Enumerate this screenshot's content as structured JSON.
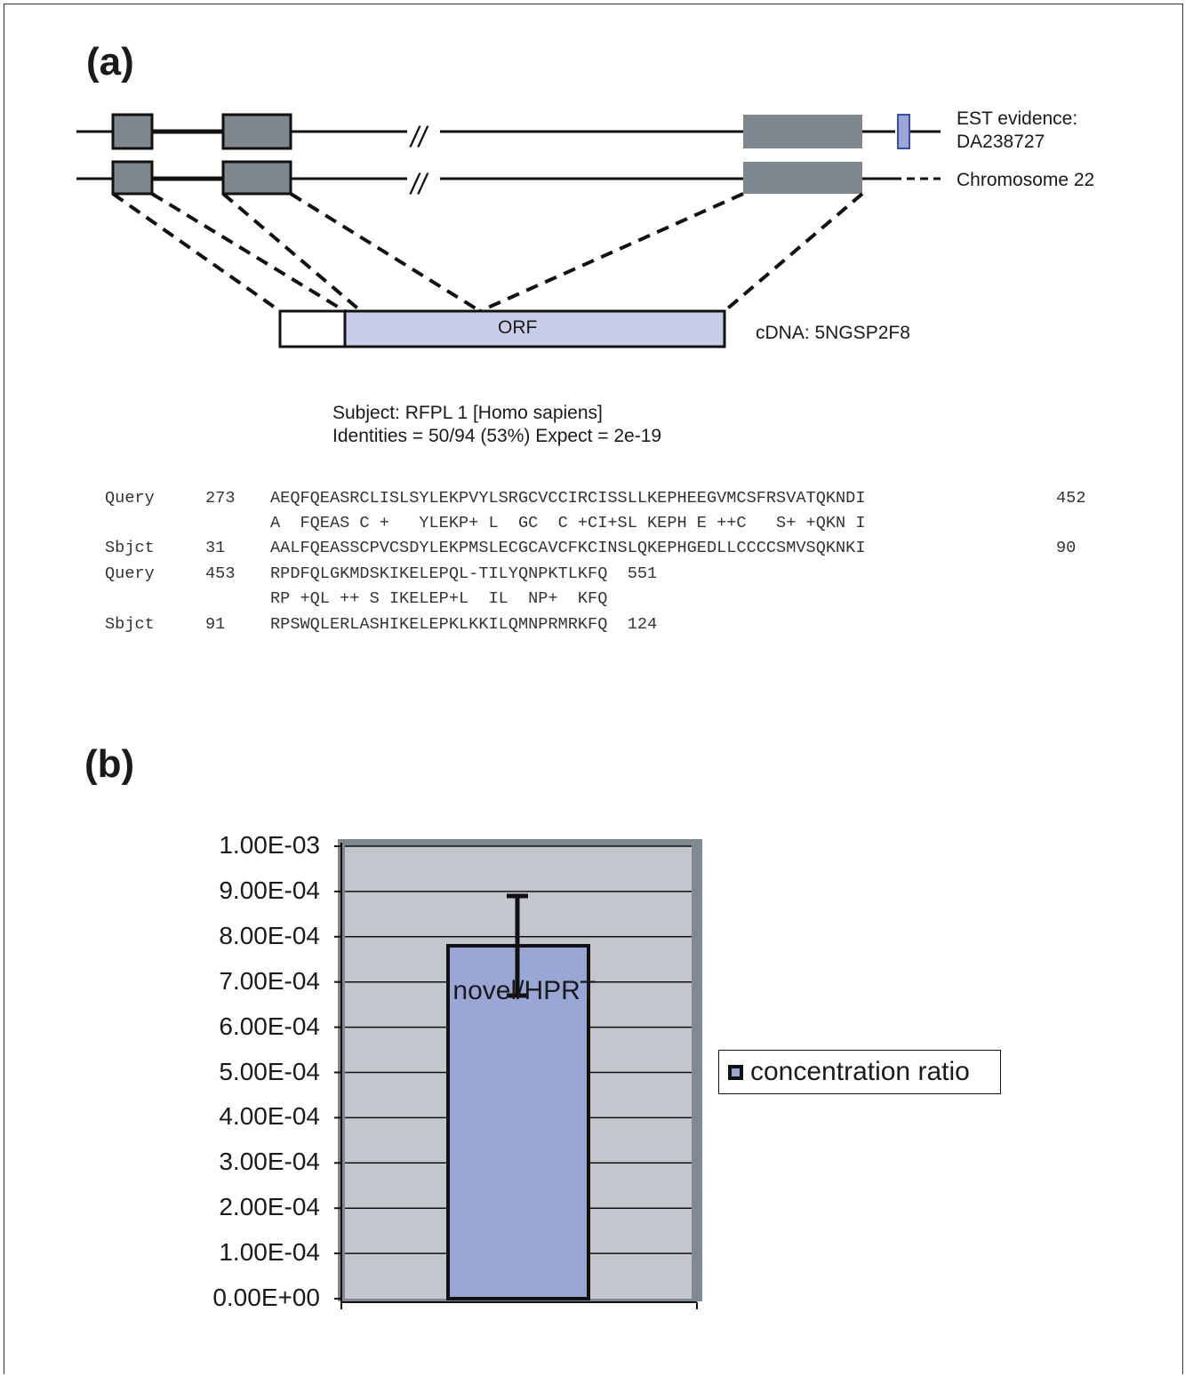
{
  "panels": {
    "a_label": "(a)",
    "b_label": "(b)"
  },
  "gene_diagram": {
    "track1_label_line1": "EST evidence:",
    "track1_label_line2": "DA238727",
    "track2_label": "Chromosome 22",
    "orf_label": "ORF",
    "cdna_label": "cDNA: 5NGSP2F8",
    "break_symbol": "//",
    "colors": {
      "exon": "#7f878e",
      "orf_fill": "#c8cde8",
      "est_marker": "#3a4fa0"
    }
  },
  "alignment": {
    "subject_line": "Subject: RFPL 1 [Homo sapiens]",
    "identities_line": "Identities = 50/94 (53%) Expect = 2e-19",
    "rows": [
      {
        "name": "Query",
        "start": "273",
        "seq": "AEQFQEASRCLISLSYLEKPVYLSRGCVCCIRCISSLLKEPHEEGVMCSFRSVATQKNDI",
        "end": "452"
      },
      {
        "name": "",
        "start": "",
        "seq": "A  FQEAS C +   YLEKP+ L  GC  C +CI+SL KEPH E ++C   S+ +QKN I",
        "end": ""
      },
      {
        "name": "Sbjct",
        "start": "31",
        "seq": "AALFQEASSCPVCSDYLEKPMSLECGCAVCFKCINSLQKEPHGEDLLCCCCSMVSQKNKI",
        "end": "90"
      },
      {
        "name": "Query",
        "start": "453",
        "seq": "RPDFQLGKMDSKIKELEPQL-TILYQNPKTLKFQ  551",
        "end": ""
      },
      {
        "name": "",
        "start": "",
        "seq": "RP +QL ++ S IKELEP+L  IL  NP+  KFQ",
        "end": ""
      },
      {
        "name": "Sbjct",
        "start": "91",
        "seq": "RPSWQLERLASHIKELEPKLKKILQMNPRMRKFQ  124",
        "end": ""
      }
    ]
  },
  "chart_data": {
    "type": "bar",
    "categories": [
      "novel/HPRT"
    ],
    "series": [
      {
        "name": "concentration ratio",
        "values": [
          0.00078
        ],
        "error": [
          0.00011
        ]
      }
    ],
    "ylim": [
      0,
      0.001
    ],
    "yticks": [
      "0.00E+00",
      "1.00E-04",
      "2.00E-04",
      "3.00E-04",
      "4.00E-04",
      "5.00E-04",
      "6.00E-04",
      "7.00E-04",
      "8.00E-04",
      "9.00E-04",
      "1.00E-03"
    ],
    "grid": true,
    "legend_position": "right",
    "colors": {
      "bar": "#9aa6d6",
      "plot_bg": "#c3c6cc",
      "frame": "#808890"
    }
  }
}
